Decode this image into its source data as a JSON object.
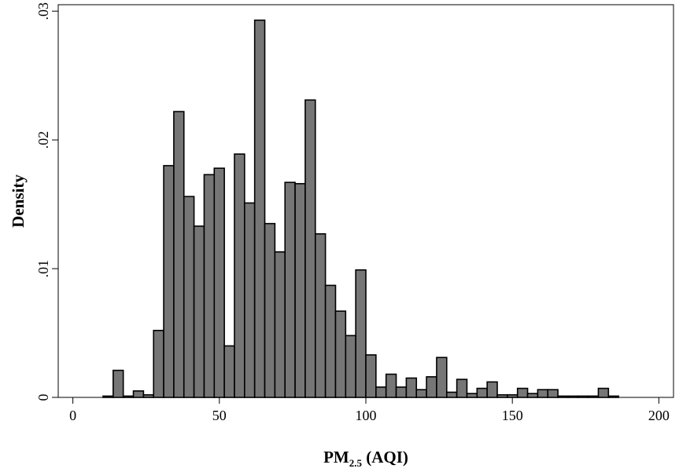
{
  "chart_data": {
    "type": "bar",
    "xlabel": "PM",
    "xlabel_subscript": "2.5",
    "xlabel_suffix": " (AQI)",
    "ylabel": "Density",
    "xlim": [
      -5,
      205
    ],
    "ylim": [
      0,
      0.0305
    ],
    "bin_width": 3.45,
    "x_ticks": [
      {
        "value": 0,
        "label": "0"
      },
      {
        "value": 50,
        "label": "50"
      },
      {
        "value": 100,
        "label": "100"
      },
      {
        "value": 150,
        "label": "150"
      },
      {
        "value": 200,
        "label": "200"
      }
    ],
    "y_ticks": [
      {
        "value": 0,
        "label": "0"
      },
      {
        "value": 0.01,
        "label": ".01"
      },
      {
        "value": 0.02,
        "label": ".02"
      },
      {
        "value": 0.03,
        "label": ".03"
      }
    ],
    "bar_color": "#767676",
    "bin_starts": [
      10.3,
      13.75,
      17.2,
      20.65,
      24.1,
      27.55,
      31.0,
      34.45,
      37.9,
      41.35,
      44.8,
      48.25,
      51.7,
      55.15,
      58.6,
      62.05,
      65.5,
      68.95,
      72.4,
      75.85,
      79.3,
      82.75,
      86.2,
      89.65,
      93.1,
      96.55,
      100.0,
      103.45,
      106.9,
      110.35,
      113.8,
      117.25,
      120.7,
      124.15,
      127.6,
      131.05,
      134.5,
      137.95,
      141.4,
      144.85,
      148.3,
      151.75,
      155.2,
      158.65,
      162.1,
      165.55,
      169.0,
      172.45,
      175.9,
      179.35,
      182.8
    ],
    "values": [
      0.0001,
      0.0021,
      0.0001,
      0.0005,
      0.0002,
      0.0052,
      0.018,
      0.0222,
      0.0156,
      0.0133,
      0.0173,
      0.0178,
      0.004,
      0.0189,
      0.0151,
      0.0293,
      0.0135,
      0.0113,
      0.0167,
      0.0166,
      0.0231,
      0.0127,
      0.0087,
      0.0067,
      0.0048,
      0.0099,
      0.0033,
      0.0008,
      0.0018,
      0.0008,
      0.0015,
      0.0006,
      0.0016,
      0.0031,
      0.0004,
      0.0014,
      0.0003,
      0.0007,
      0.0012,
      0.0002,
      0.0002,
      0.0007,
      0.0003,
      0.0006,
      0.0006,
      0.0001,
      0.0001,
      0.0001,
      0.0001,
      0.0007,
      0.0001
    ]
  }
}
